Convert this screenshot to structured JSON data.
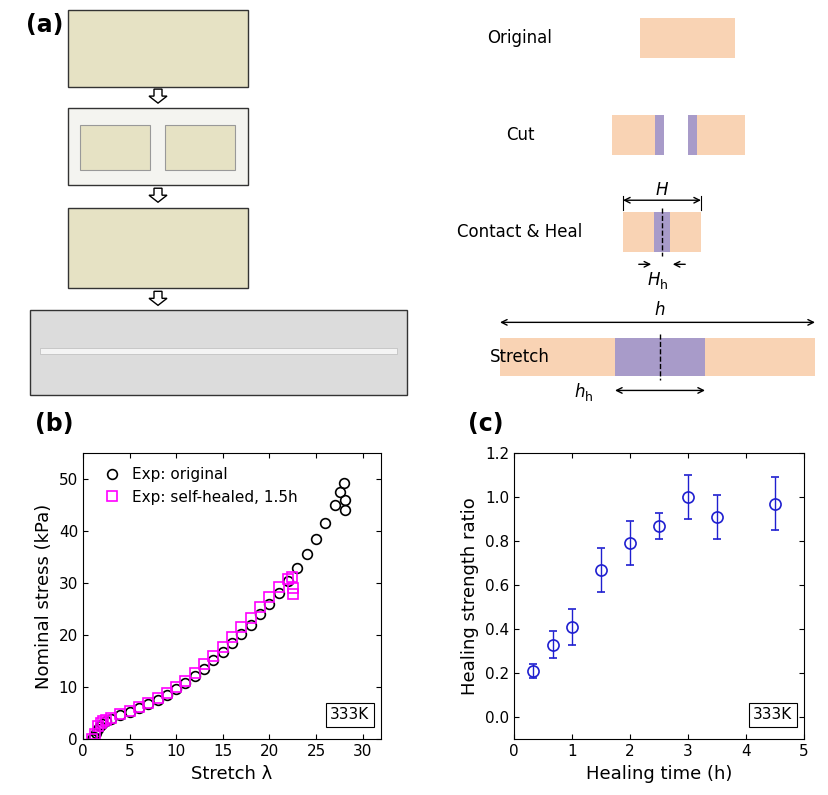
{
  "panel_a": {
    "label": "(a)",
    "steps": [
      "Original",
      "Cut",
      "Contact & Heal",
      "Stretch"
    ],
    "contact_dims": {
      "total": "H",
      "healed": {
        "main": "H",
        "sub": "h"
      }
    },
    "stretch_dims": {
      "total": "h",
      "healed": {
        "main": "h",
        "sub": "h"
      }
    }
  },
  "chart_data": [
    {
      "type": "scatter",
      "panel_label": "(b)",
      "annotation": "333K",
      "x_label": "Stretch λ",
      "y_label": "Nominal stress (kPa)",
      "xlim": [
        0,
        32
      ],
      "xticks": [
        0,
        5,
        10,
        15,
        20,
        25,
        30
      ],
      "ylim": [
        0,
        55
      ],
      "yticks": [
        0,
        10,
        20,
        30,
        40,
        50
      ],
      "legend": "upper left",
      "series": [
        {
          "name": "Exp: original",
          "color": "#000000",
          "marker": "o",
          "x": [
            1.0,
            1.2,
            1.4,
            1.6,
            1.8,
            2.0,
            2.5,
            3,
            4,
            5,
            6,
            7,
            8,
            9,
            10,
            11,
            12,
            13,
            14,
            15,
            16,
            17,
            18,
            19,
            20,
            21,
            22,
            23,
            24,
            25,
            26,
            27,
            27.6,
            28,
            28.1,
            28.1
          ],
          "values": [
            0,
            0.5,
            1.2,
            2.0,
            2.6,
            3.0,
            3.6,
            4.0,
            4.6,
            5.2,
            6.0,
            6.8,
            7.6,
            8.5,
            9.6,
            10.8,
            12.2,
            13.6,
            15.2,
            16.8,
            18.5,
            20.2,
            22.0,
            24.0,
            26.0,
            28.2,
            30.5,
            33.0,
            35.6,
            38.5,
            41.5,
            45.0,
            47.5,
            49.2,
            46.0,
            44.0
          ]
        },
        {
          "name": "Exp: self-healed, 1.5h",
          "color": "#ff00ff",
          "marker": "s",
          "x": [
            1.0,
            1.3,
            1.6,
            1.9,
            2.2,
            2.5,
            3,
            4,
            5,
            6,
            7,
            8,
            9,
            10,
            11,
            12,
            13,
            14,
            15,
            16,
            17,
            18,
            19,
            20,
            21,
            22,
            22.4,
            22.5,
            22.5
          ],
          "values": [
            0,
            1.0,
            2.5,
            3.2,
            3.5,
            3.7,
            4.1,
            4.8,
            5.4,
            6.2,
            7.0,
            7.9,
            8.9,
            10.0,
            11.3,
            12.8,
            14.4,
            16.0,
            17.8,
            19.6,
            21.5,
            23.4,
            25.4,
            27.4,
            29.2,
            30.8,
            31.2,
            29.0,
            28.0
          ]
        }
      ]
    },
    {
      "type": "scatter",
      "panel_label": "(c)",
      "annotation": "333K",
      "x_label": "Healing time (h)",
      "y_label": "Healing strength ratio",
      "xlim": [
        0,
        5
      ],
      "xticks": [
        0,
        1,
        2,
        3,
        4,
        5
      ],
      "ylim": [
        -0.1,
        1.2
      ],
      "yticks": [
        0.0,
        0.2,
        0.4,
        0.6,
        0.8,
        1.0,
        1.2
      ],
      "color": "#1f1fd0",
      "marker": "o",
      "x": [
        0.33,
        0.67,
        1.0,
        1.5,
        2.0,
        2.5,
        3.0,
        3.5,
        4.5
      ],
      "values": [
        0.21,
        0.33,
        0.41,
        0.67,
        0.79,
        0.87,
        1.0,
        0.91,
        0.97
      ],
      "errors": [
        0.03,
        0.06,
        0.08,
        0.1,
        0.1,
        0.06,
        0.1,
        0.1,
        0.12
      ]
    }
  ]
}
